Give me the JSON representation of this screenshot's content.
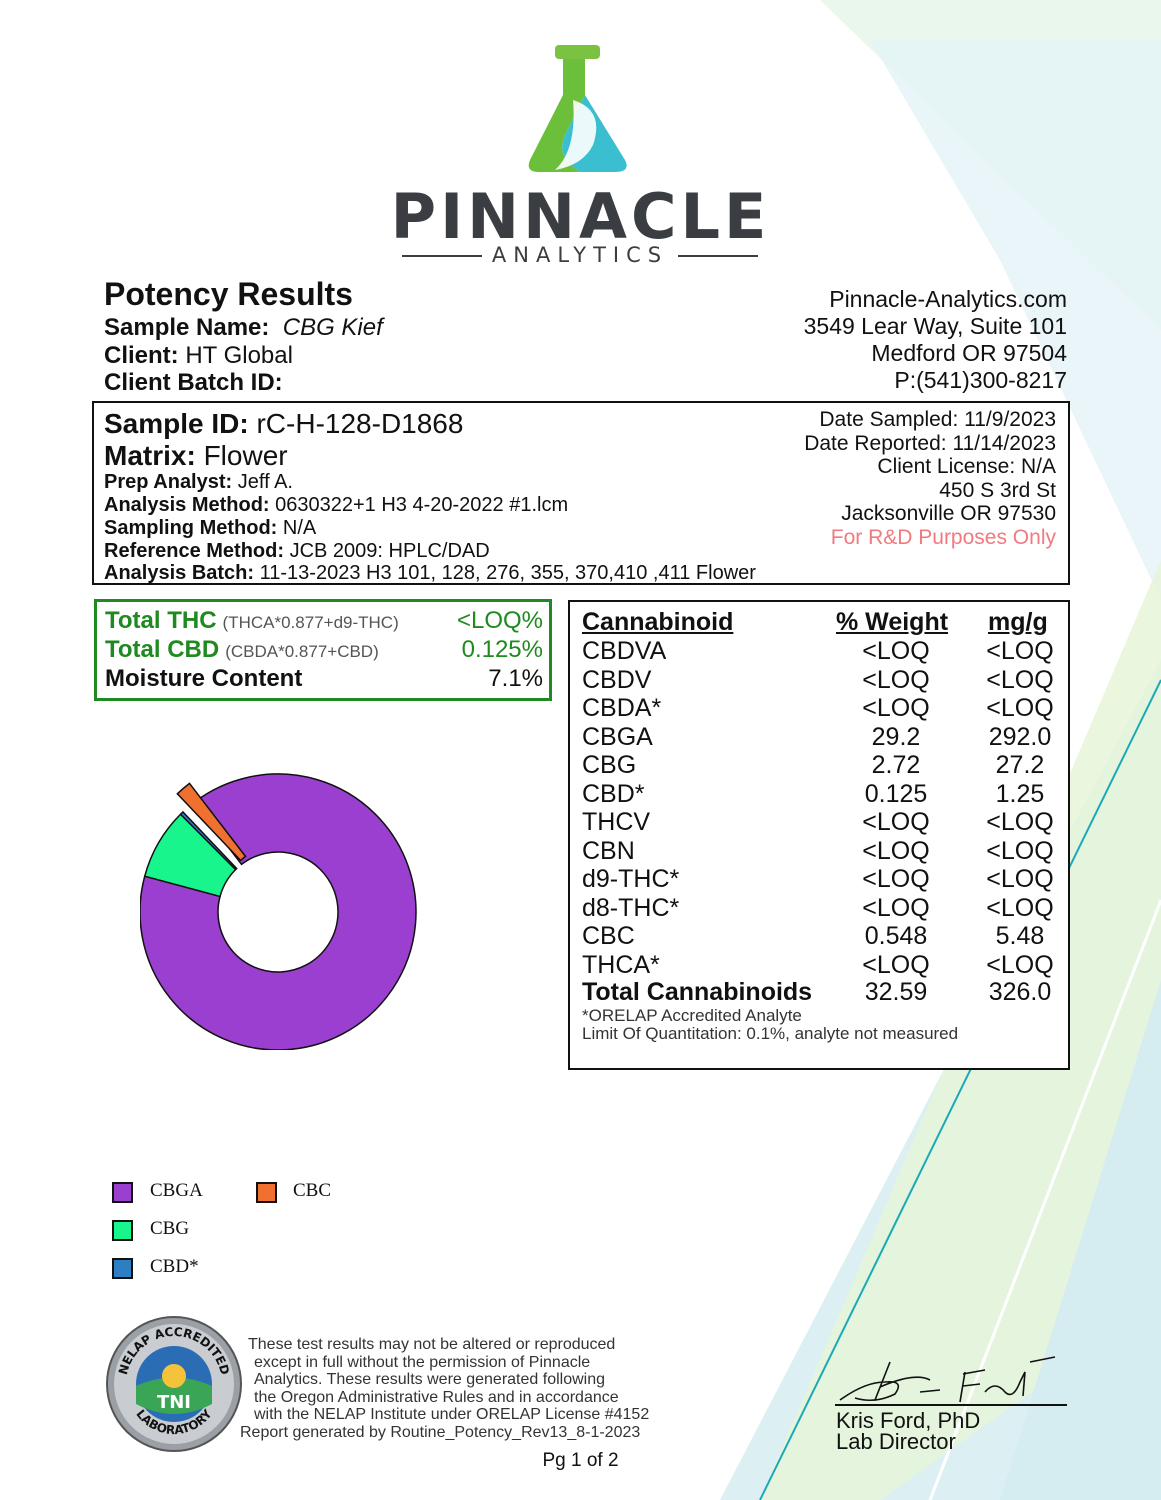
{
  "brand": {
    "name": "PINNACLE",
    "subtitle": "ANALYTICS"
  },
  "header": {
    "title": "Potency Results",
    "sample_name_label": "Sample Name:",
    "sample_name": "CBG Kief",
    "client_label": "Client:",
    "client": "HT Global",
    "batch_label": "Client Batch ID:",
    "lab_website": "Pinnacle-Analytics.com",
    "lab_address1": "3549 Lear Way, Suite 101",
    "lab_address2": "Medford OR 97504",
    "lab_phone": "P:(541)300-8217"
  },
  "sample": {
    "id_label": "Sample ID:",
    "id": "rC-H-128-D1868",
    "matrix_label": "Matrix:",
    "matrix": "Flower",
    "prep_label": "Prep Analyst:",
    "prep": "Jeff A.",
    "method_label": "Analysis Method:",
    "method": "0630322+1 H3 4-20-2022 #1.lcm",
    "sampling_label": "Sampling Method:",
    "sampling": "N/A",
    "reference_label": "Reference Method:",
    "reference": "JCB 2009: HPLC/DAD",
    "batch_label": "Analysis Batch:",
    "batch": "11-13-2023 H3 101, 128, 276, 355, 370,410 ,411 Flower",
    "date_sampled": "Date Sampled:  11/9/2023",
    "date_reported": "Date Reported: 11/14/2023",
    "license": "Client License: N/A",
    "addr1": "450 S 3rd St",
    "addr2": "Jacksonville OR 97530",
    "purpose": "For R&D Purposes Only"
  },
  "summary": {
    "thc_label": "Total THC",
    "thc_formula": "(THCA*0.877+d9-THC)",
    "thc_value": "<LOQ%",
    "cbd_label": "Total CBD",
    "cbd_formula": "(CBDA*0.877+CBD)",
    "cbd_value": "0.125%",
    "moisture_label": "Moisture Content",
    "moisture_value": "7.1%"
  },
  "table": {
    "headers": [
      "Cannabinoid",
      "% Weight",
      "mg/g"
    ],
    "rows": [
      [
        "CBDVA",
        "<LOQ",
        "<LOQ"
      ],
      [
        "CBDV",
        "<LOQ",
        "<LOQ"
      ],
      [
        "CBDA*",
        "<LOQ",
        "<LOQ"
      ],
      [
        "CBGA",
        "29.2",
        "292.0"
      ],
      [
        "CBG",
        "2.72",
        "27.2"
      ],
      [
        "CBD*",
        "0.125",
        "1.25"
      ],
      [
        "THCV",
        "<LOQ",
        "<LOQ"
      ],
      [
        "CBN",
        "<LOQ",
        "<LOQ"
      ],
      [
        "d9-THC*",
        "<LOQ",
        "<LOQ"
      ],
      [
        "d8-THC*",
        "<LOQ",
        "<LOQ"
      ],
      [
        "CBC",
        "0.548",
        "5.48"
      ],
      [
        "THCA*",
        "<LOQ",
        "<LOQ"
      ]
    ],
    "total": [
      "Total Cannabinoids",
      "32.59",
      "326.0"
    ],
    "note1": "*ORELAP Accredited Analyte",
    "note2": "Limit Of Quantitation: 0.1%, analyte not measured"
  },
  "chart_data": {
    "type": "pie",
    "categories": [
      "CBGA",
      "CBG",
      "CBD*",
      "CBC"
    ],
    "values": [
      29.2,
      2.72,
      0.125,
      0.548
    ],
    "colors": [
      "#9a3fd0",
      "#18f58c",
      "#2d7fc4",
      "#f07030"
    ],
    "title": "",
    "legend_placement": "bottom-left"
  },
  "legend": {
    "cbga": "CBGA",
    "cbc": "CBC",
    "cbg": "CBG",
    "cbd": "CBD*"
  },
  "seal": {
    "top": "NELAP ACCREDITED",
    "bottom": "LABORATORY",
    "center": "TNI"
  },
  "footer": {
    "disclaimer": [
      "These test results may not be altered or reproduced",
      "except in full without the permission of Pinnacle",
      "Analytics. These results were generated following",
      "the Oregon Administrative Rules and in accordance",
      "with the NELAP Institute under ORELAP License #4152",
      "Report generated by Routine_Potency_Rev13_8-1-2023"
    ],
    "signer": "Kris Ford, PhD",
    "signer_title": "Lab Director",
    "page": "Pg 1 of 2"
  }
}
